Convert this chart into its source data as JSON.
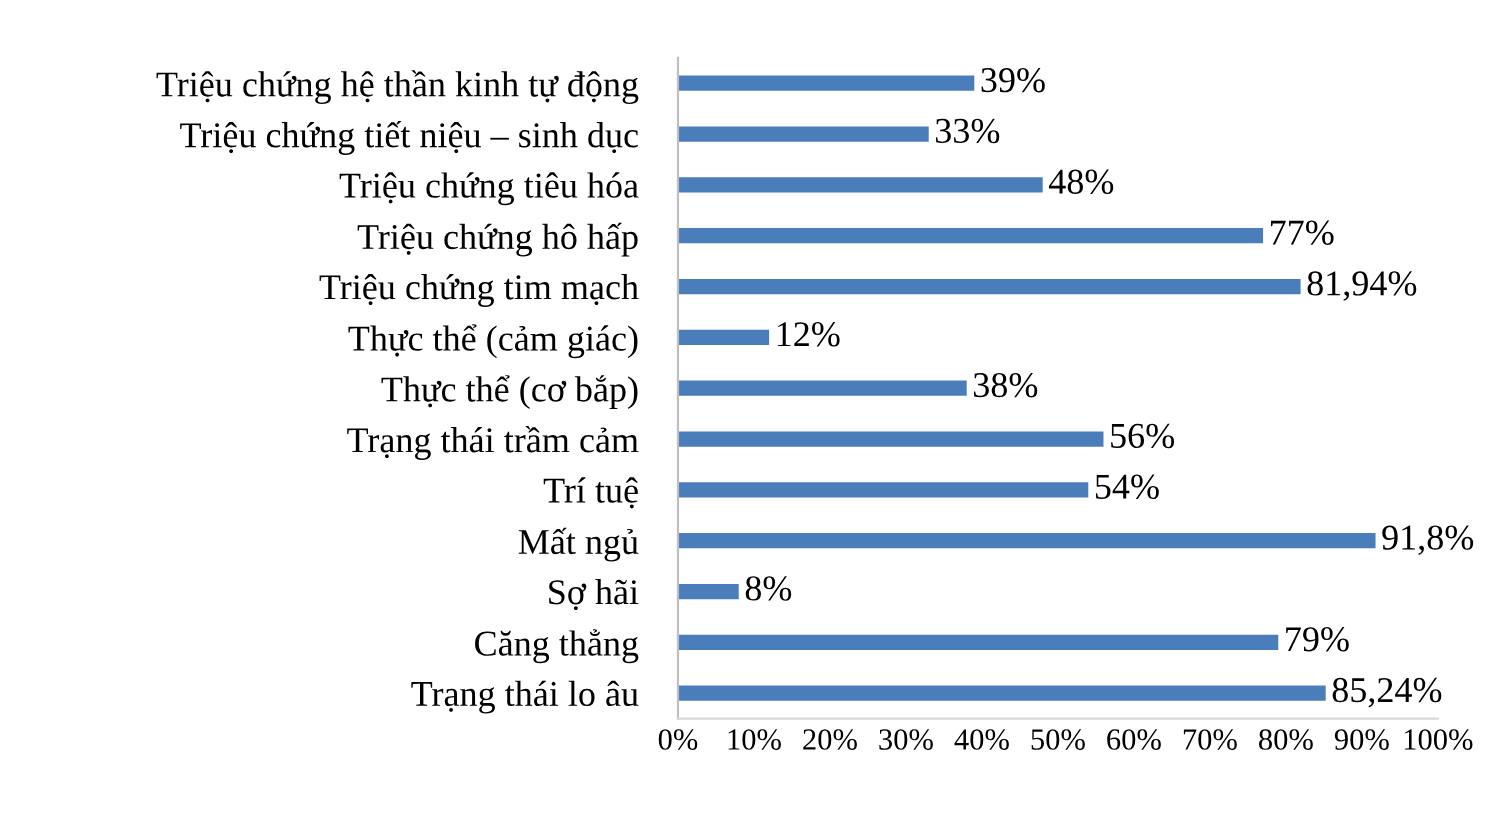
{
  "chart_data": {
    "type": "bar",
    "orientation": "horizontal",
    "categories": [
      "Triệu chứng hệ thần kinh tự động",
      "Triệu chứng tiết niệu – sinh dục",
      "Triệu chứng tiêu hóa",
      "Triệu chứng hô hấp",
      "Triệu chứng tim mạch",
      "Thực thể (cảm giác)",
      "Thực thể (cơ bắp)",
      "Trạng thái trầm cảm",
      "Trí tuệ",
      "Mất ngủ",
      "Sợ hãi",
      "Căng thẳng",
      "Trạng thái lo âu"
    ],
    "values": [
      39,
      33,
      48,
      77,
      81.94,
      12,
      38,
      56,
      54,
      91.8,
      8,
      79,
      85.24
    ],
    "value_labels": [
      "39%",
      "33%",
      "48%",
      "77%",
      "81,94%",
      "12%",
      "38%",
      "56%",
      "54%",
      "91,8%",
      "8%",
      "79%",
      "85,24%"
    ],
    "color": "#4a7ebb",
    "xlim": [
      0,
      100
    ],
    "xticks": [
      {
        "value": 0,
        "label": "0%"
      },
      {
        "value": 10,
        "label": "10%"
      },
      {
        "value": 20,
        "label": "20%"
      },
      {
        "value": 30,
        "label": "30%"
      },
      {
        "value": 40,
        "label": "40%"
      },
      {
        "value": 50,
        "label": "50%"
      },
      {
        "value": 60,
        "label": "60%"
      },
      {
        "value": 70,
        "label": "70%"
      },
      {
        "value": 80,
        "label": "80%"
      },
      {
        "value": 90,
        "label": "90%"
      },
      {
        "value": 100,
        "label": "100%"
      }
    ],
    "grid": false,
    "legend": false
  }
}
